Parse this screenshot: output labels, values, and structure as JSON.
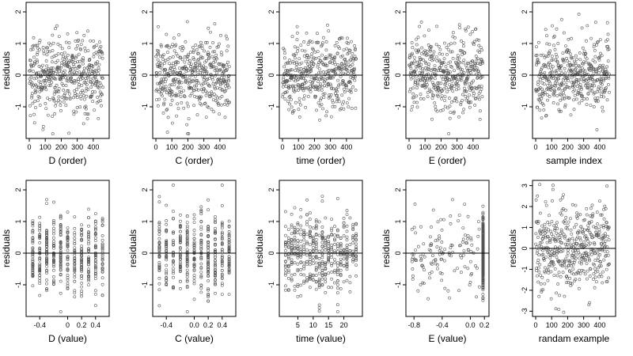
{
  "chart_data": [
    {
      "type": "scatter",
      "xlabel": "D (order)",
      "ylabel": "residuals",
      "xlim": [
        0,
        480
      ],
      "ylim": [
        -1.9,
        2.2
      ],
      "xticks": [
        0,
        100,
        200,
        300,
        400
      ],
      "yticks": [
        -1,
        0,
        1,
        2
      ],
      "refline": 0,
      "x_mode": "index",
      "n": 460
    },
    {
      "type": "scatter",
      "xlabel": "C (order)",
      "ylabel": "residuals",
      "xlim": [
        0,
        480
      ],
      "ylim": [
        -1.9,
        2.2
      ],
      "xticks": [
        0,
        100,
        200,
        300,
        400
      ],
      "yticks": [
        -1,
        0,
        1,
        2
      ],
      "refline": 0,
      "x_mode": "index",
      "n": 460
    },
    {
      "type": "scatter",
      "xlabel": "time (order)",
      "ylabel": "residuals",
      "xlim": [
        0,
        480
      ],
      "ylim": [
        -1.9,
        2.2
      ],
      "xticks": [
        0,
        100,
        200,
        300,
        400
      ],
      "yticks": [
        -1,
        0,
        1,
        2
      ],
      "refline": 0,
      "x_mode": "index",
      "n": 460
    },
    {
      "type": "scatter",
      "xlabel": "E (order)",
      "ylabel": "residuals",
      "xlim": [
        0,
        480
      ],
      "ylim": [
        -1.9,
        2.2
      ],
      "xticks": [
        0,
        100,
        200,
        300,
        400
      ],
      "yticks": [
        -1,
        0,
        1,
        2
      ],
      "refline": 0,
      "x_mode": "index",
      "n": 460
    },
    {
      "type": "scatter",
      "xlabel": "sample index",
      "ylabel": "residuals",
      "xlim": [
        0,
        480
      ],
      "ylim": [
        -1.9,
        2.2
      ],
      "xticks": [
        0,
        100,
        200,
        300,
        400
      ],
      "yticks": [
        -1,
        0,
        1,
        2
      ],
      "refline": 0,
      "x_mode": "index",
      "n": 460
    },
    {
      "type": "scatter",
      "xlabel": "D (value)",
      "ylabel": "residuals",
      "xlim": [
        -0.55,
        0.55
      ],
      "ylim": [
        -1.9,
        2.2
      ],
      "xticks": [
        -0.4,
        0,
        0.2,
        0.4
      ],
      "xtick_labels": [
        "-0.4",
        "0",
        "0.2",
        "0.4"
      ],
      "yticks": [
        -1,
        0,
        1,
        2
      ],
      "refline": 0,
      "x_mode": "discrete",
      "x_levels": [
        -0.5,
        -0.4,
        -0.3,
        -0.2,
        -0.1,
        0,
        0.1,
        0.2,
        0.3,
        0.4,
        0.5
      ],
      "n": 460
    },
    {
      "type": "scatter",
      "xlabel": "C (value)",
      "ylabel": "residuals",
      "xlim": [
        -0.55,
        0.55
      ],
      "ylim": [
        -1.9,
        2.2
      ],
      "xticks": [
        -0.4,
        0,
        0.2,
        0.4
      ],
      "xtick_labels": [
        "-0.4",
        "0.0",
        "0.2",
        "0.4"
      ],
      "yticks": [
        -1,
        0,
        1,
        2
      ],
      "refline": 0,
      "x_mode": "discrete",
      "x_levels": [
        -0.5,
        -0.4,
        -0.3,
        -0.2,
        -0.1,
        0,
        0.1,
        0.2,
        0.3,
        0.4,
        0.5
      ],
      "n": 460
    },
    {
      "type": "scatter",
      "xlabel": "time (value)",
      "ylabel": "residuals",
      "xlim": [
        0,
        25
      ],
      "ylim": [
        -1.9,
        2.2
      ],
      "xticks": [
        5,
        10,
        15,
        20
      ],
      "yticks": [
        -1,
        0,
        1,
        2
      ],
      "refline": 0,
      "x_mode": "discrete",
      "x_levels": [
        1,
        2,
        3,
        4,
        5,
        6,
        7,
        8,
        9,
        10,
        11,
        12,
        13,
        14,
        15,
        16,
        17,
        18,
        19,
        20,
        21,
        22,
        23,
        24
      ],
      "n": 460
    },
    {
      "type": "scatter",
      "xlabel": "E (value)",
      "ylabel": "residuals",
      "xlim": [
        -0.87,
        0.22
      ],
      "ylim": [
        -1.9,
        2.2
      ],
      "xticks": [
        -0.8,
        -0.4,
        0,
        0.2
      ],
      "xtick_labels": [
        "-0.8",
        "-0.4",
        "0.0",
        "0.2"
      ],
      "yticks": [
        -1,
        0,
        1,
        2
      ],
      "refline": 0,
      "x_mode": "skewed",
      "x_max": 0.18,
      "x_min": -0.83,
      "n": 460
    },
    {
      "type": "scatter",
      "xlabel": "randam example",
      "ylabel": "residuals",
      "xlim": [
        0,
        480
      ],
      "ylim": [
        -3.1,
        3.1
      ],
      "xticks": [
        0,
        100,
        200,
        300,
        400
      ],
      "yticks": [
        -3,
        -2,
        -1,
        0,
        1,
        2,
        3
      ],
      "refline": 0,
      "x_mode": "index",
      "n": 460,
      "y_scale": 1.0
    }
  ]
}
